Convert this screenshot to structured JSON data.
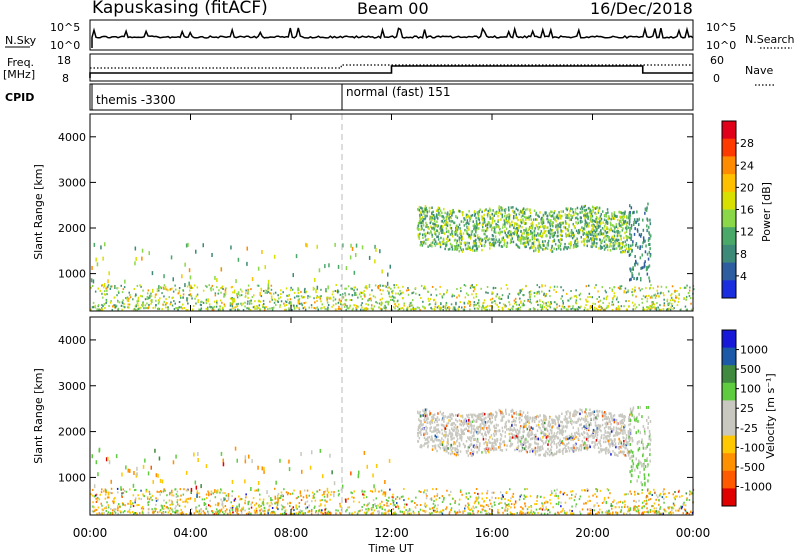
{
  "header": {
    "station": "Kapuskasing (fitACF)",
    "beam": "Beam 00",
    "date": "16/Dec/2018"
  },
  "top_panels": {
    "nsky_label": "N.Sky",
    "nsky_ticks": [
      "10^5",
      "10^0"
    ],
    "nsearch_label": "N.Search",
    "freq_label_1": "Freq.",
    "freq_label_2": "[MHz]",
    "freq_ticks": [
      "18",
      "8"
    ],
    "nave_ticks": [
      "60",
      "0"
    ],
    "nave_label": "Nave",
    "cpid_label": "CPID",
    "cpid_1": "themis -3300",
    "cpid_2": "normal (fast) 151"
  },
  "axes": {
    "ylabel": "Slant Range [km]",
    "yticks": [
      "4000",
      "3000",
      "2000",
      "1000"
    ],
    "xticks": [
      "00:00",
      "04:00",
      "08:00",
      "12:00",
      "16:00",
      "20:00",
      "00:00"
    ],
    "xlabel": "Time UT"
  },
  "colorbars": {
    "power": {
      "label": "Power [dB]",
      "ticks": [
        "28",
        "24",
        "20",
        "16",
        "12",
        "8",
        "4"
      ],
      "colors": [
        "#e0001a",
        "#ff3a00",
        "#ff8c00",
        "#ffc000",
        "#d8e000",
        "#8ad84a",
        "#4aa868",
        "#3e8a78",
        "#2e5ea0",
        "#1a2ee0"
      ]
    },
    "velocity": {
      "label": "Velocity [m s⁻¹]",
      "ticks": [
        "1000",
        "500",
        "100",
        "25",
        "-25",
        "-100",
        "-500",
        "-1000"
      ],
      "colors": [
        "#1818d8",
        "#1c5aa8",
        "#3f8a3f",
        "#5fcc3f",
        "#c8c8c0",
        "#c8c8c0",
        "#ffc800",
        "#ff9000",
        "#ff5a00",
        "#e00000"
      ]
    }
  },
  "chart_data": [
    {
      "type": "heatmap",
      "title": "Power [dB]",
      "xlabel": "Time UT",
      "ylabel": "Slant Range [km]",
      "xlim": [
        "00:00",
        "24:00"
      ],
      "ylim": [
        180,
        4500
      ],
      "colorbar_range": [
        0,
        30
      ],
      "regions": [
        {
          "t_start": 0.0,
          "t_end": 24.0,
          "r_min": 180,
          "r_max": 700,
          "value": 12
        },
        {
          "t_start": 13.0,
          "t_end": 21.5,
          "r_min": 1500,
          "r_max": 2400,
          "value": 16
        },
        {
          "t_start": 21.5,
          "t_end": 22.3,
          "r_min": 800,
          "r_max": 2500,
          "value": 10
        }
      ]
    },
    {
      "type": "heatmap",
      "title": "Velocity [m s⁻¹]",
      "xlabel": "Time UT",
      "ylabel": "Slant Range [km]",
      "xlim": [
        "00:00",
        "24:00"
      ],
      "ylim": [
        180,
        4500
      ],
      "colorbar_range": [
        -1000,
        1000
      ],
      "regions": [
        {
          "t_start": 0.0,
          "t_end": 24.0,
          "r_min": 180,
          "r_max": 700,
          "value": -50
        },
        {
          "t_start": 13.0,
          "t_end": 21.5,
          "r_min": 1500,
          "r_max": 2400,
          "value": 0
        },
        {
          "t_start": 21.5,
          "t_end": 22.3,
          "r_min": 800,
          "r_max": 2500,
          "value": 80
        }
      ]
    }
  ]
}
